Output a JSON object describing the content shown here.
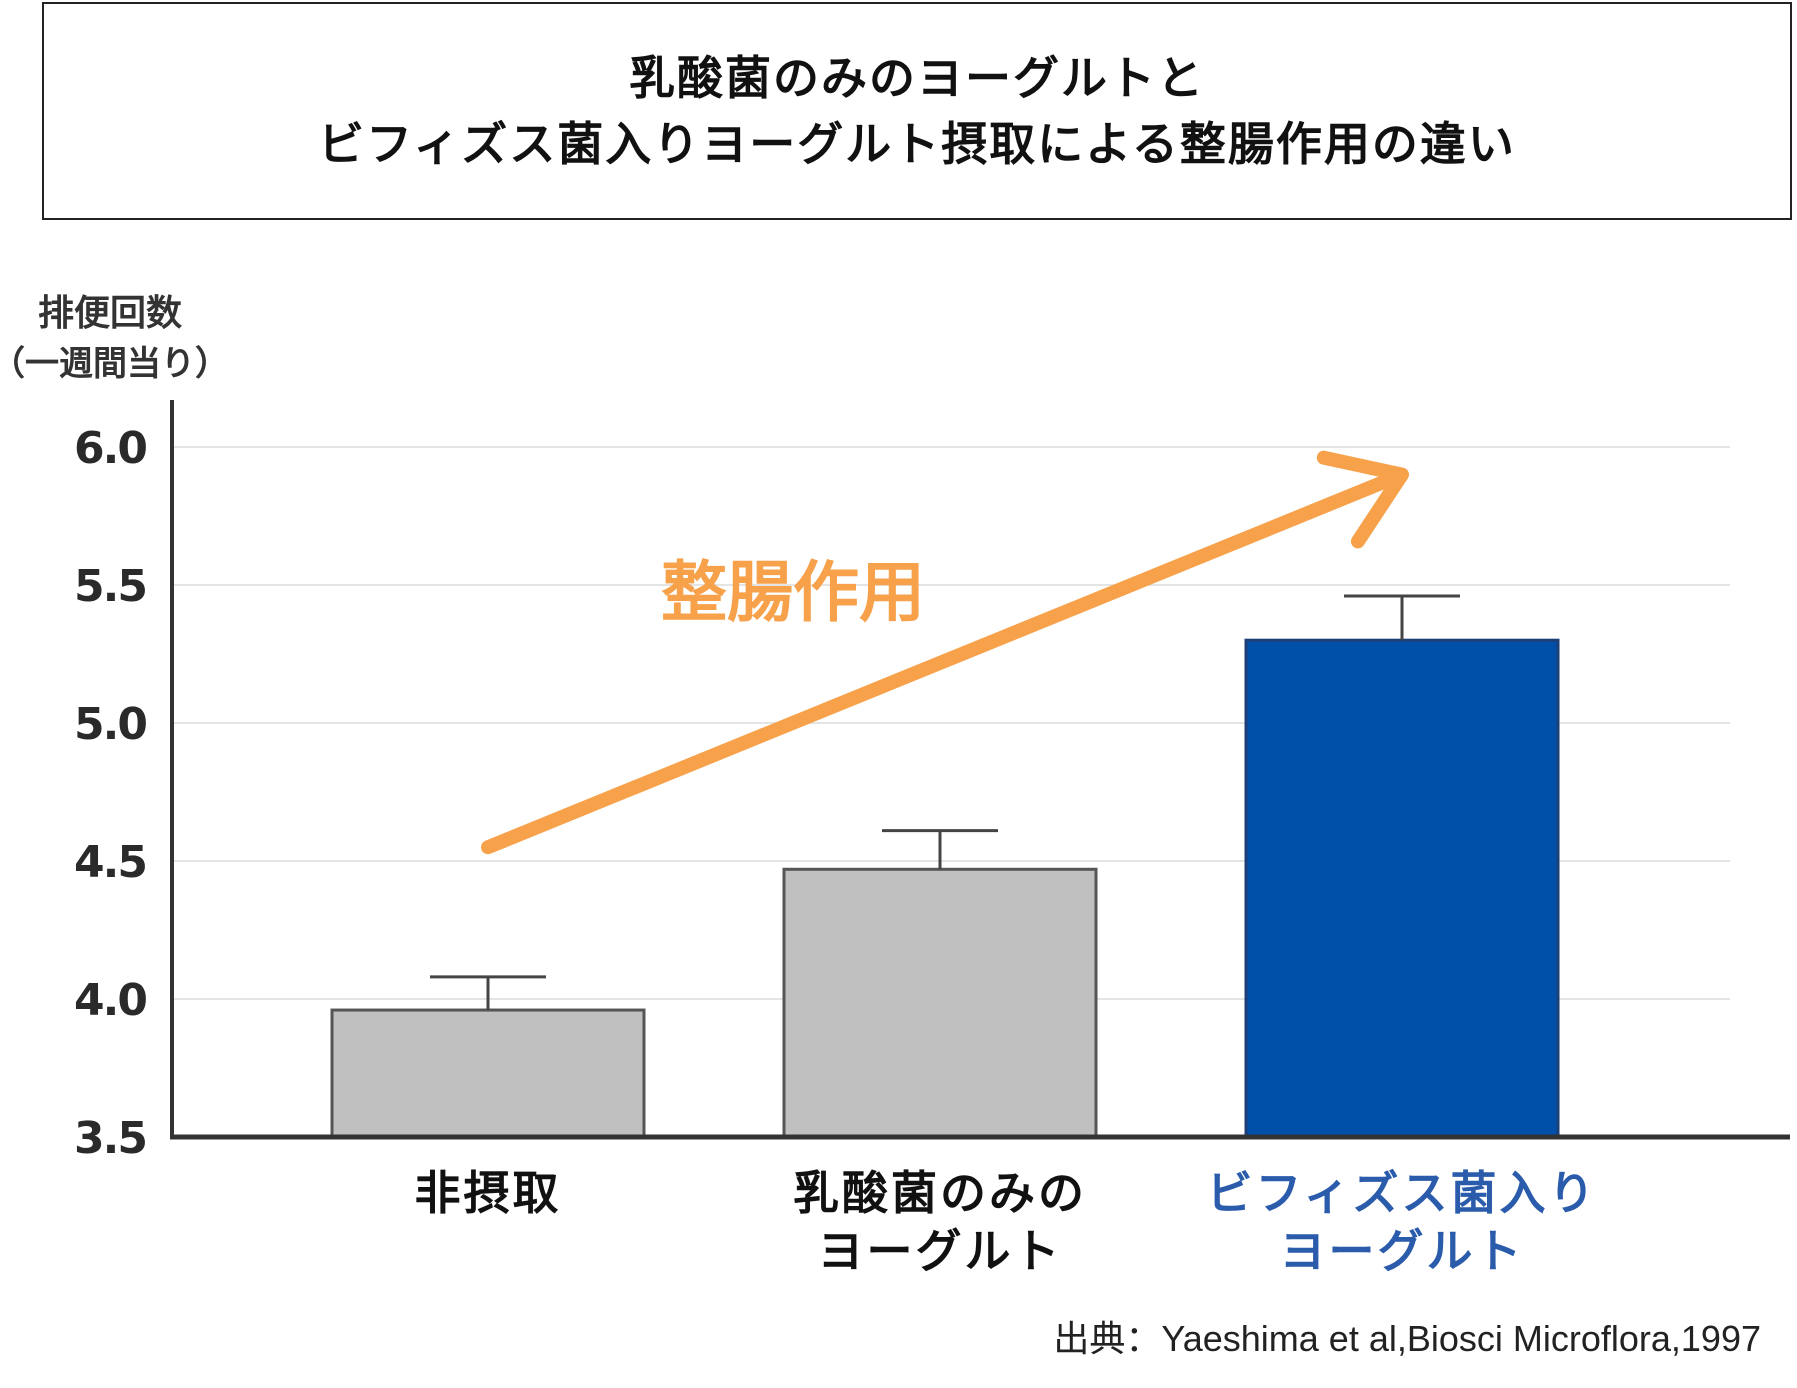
{
  "title": {
    "line1": "乳酸菌のみのヨーグルトと",
    "line2": "ビフィズス菌入りヨーグルト摂取による整腸作用の違い"
  },
  "source": {
    "prefix": "出典：",
    "text": "Yaeshima et al,Biosci Microflora,1997"
  },
  "colors": {
    "gray_bar": "#c0c0c0",
    "blue_bar": "#0050aa",
    "arrow": "#f7a24b",
    "axis": "#333333",
    "blue_text": "#2b5cab"
  },
  "chart_data": {
    "type": "bar",
    "ylabel": [
      "排便回数",
      "（一週間当り）"
    ],
    "ylim": [
      3.5,
      6.0
    ],
    "yticks": [
      "6.0",
      "5.5",
      "5.0",
      "4.5",
      "4.0",
      "3.5"
    ],
    "grid": true,
    "categories": [
      [
        "非摂取"
      ],
      [
        "乳酸菌のみの",
        "ヨーグルト"
      ],
      [
        "ビフィズス菌入り",
        "ヨーグルト"
      ]
    ],
    "values": [
      3.96,
      4.47,
      5.3
    ],
    "error_upper": [
      4.08,
      4.61,
      5.46
    ],
    "annotation": {
      "text": "整腸作用",
      "arrow_from": [
        0,
        4.55
      ],
      "arrow_to": [
        2,
        5.9
      ]
    }
  }
}
